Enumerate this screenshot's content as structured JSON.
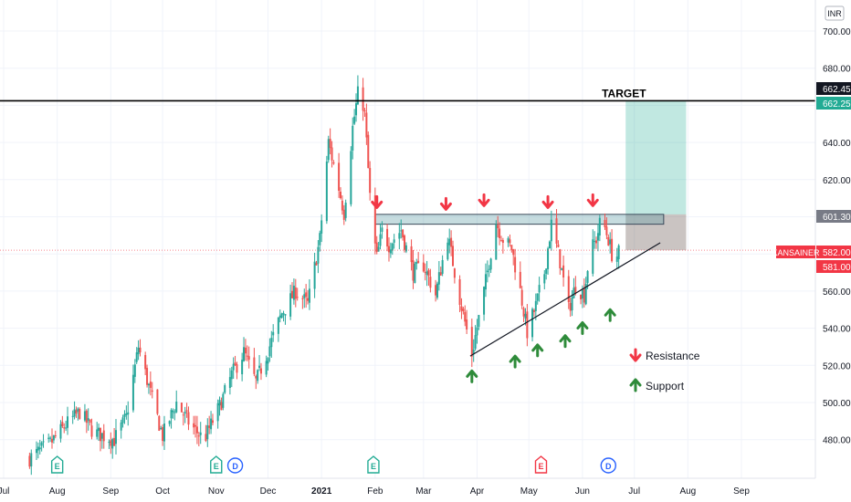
{
  "chart_data": {
    "type": "candlestick",
    "symbol": "KANSAINER",
    "currency": "INR",
    "y_range": [
      460,
      720
    ],
    "y_ticks": [
      480,
      500,
      520,
      540,
      560,
      580,
      600,
      620,
      640,
      660,
      680,
      700
    ],
    "y_tick_labels": [
      "480.00",
      "500.00",
      "520.00",
      "540.00",
      "560.00",
      "580.00",
      "600.00",
      "620.00",
      "640.00",
      "660.00",
      "680.00",
      "700.00"
    ],
    "x_ticks": [
      {
        "date": "2020-07-01",
        "label": "Jul",
        "bold": false
      },
      {
        "date": "2020-08-01",
        "label": "Aug",
        "bold": false
      },
      {
        "date": "2020-09-01",
        "label": "Sep",
        "bold": false
      },
      {
        "date": "2020-10-01",
        "label": "Oct",
        "bold": false
      },
      {
        "date": "2020-11-01",
        "label": "Nov",
        "bold": false
      },
      {
        "date": "2020-12-01",
        "label": "Dec",
        "bold": false
      },
      {
        "date": "2021-01-01",
        "label": "2021",
        "bold": true
      },
      {
        "date": "2021-02-01",
        "label": "Feb",
        "bold": false
      },
      {
        "date": "2021-03-01",
        "label": "Mar",
        "bold": false
      },
      {
        "date": "2021-04-01",
        "label": "Apr",
        "bold": false
      },
      {
        "date": "2021-05-01",
        "label": "May",
        "bold": false
      },
      {
        "date": "2021-06-01",
        "label": "Jun",
        "bold": false
      },
      {
        "date": "2021-07-01",
        "label": "Jul",
        "bold": false
      },
      {
        "date": "2021-08-01",
        "label": "Aug",
        "bold": false
      },
      {
        "date": "2021-09-01",
        "label": "Sep",
        "bold": false
      }
    ],
    "price_path": [
      {
        "date": "2020-07-16",
        "price": 470
      },
      {
        "date": "2020-07-28",
        "price": 478
      },
      {
        "date": "2020-08-06",
        "price": 488
      },
      {
        "date": "2020-08-14",
        "price": 495
      },
      {
        "date": "2020-08-22",
        "price": 484
      },
      {
        "date": "2020-09-03",
        "price": 480
      },
      {
        "date": "2020-09-10",
        "price": 492
      },
      {
        "date": "2020-09-17",
        "price": 530
      },
      {
        "date": "2020-09-24",
        "price": 505
      },
      {
        "date": "2020-10-01",
        "price": 482
      },
      {
        "date": "2020-10-09",
        "price": 500
      },
      {
        "date": "2020-10-17",
        "price": 488
      },
      {
        "date": "2020-10-25",
        "price": 480
      },
      {
        "date": "2020-11-03",
        "price": 498
      },
      {
        "date": "2020-11-10",
        "price": 515
      },
      {
        "date": "2020-11-17",
        "price": 527
      },
      {
        "date": "2020-11-24",
        "price": 511
      },
      {
        "date": "2020-12-01",
        "price": 528
      },
      {
        "date": "2020-12-09",
        "price": 548
      },
      {
        "date": "2020-12-17",
        "price": 560
      },
      {
        "date": "2020-12-24",
        "price": 553
      },
      {
        "date": "2020-12-31",
        "price": 588
      },
      {
        "date": "2021-01-05",
        "price": 640
      },
      {
        "date": "2021-01-10",
        "price": 620
      },
      {
        "date": "2021-01-14",
        "price": 602
      },
      {
        "date": "2021-01-19",
        "price": 648
      },
      {
        "date": "2021-01-23",
        "price": 672
      },
      {
        "date": "2021-01-26",
        "price": 655
      },
      {
        "date": "2021-01-30",
        "price": 596
      },
      {
        "date": "2021-02-02",
        "price": 578
      },
      {
        "date": "2021-02-05",
        "price": 592
      },
      {
        "date": "2021-02-09",
        "price": 585
      },
      {
        "date": "2021-02-16",
        "price": 593
      },
      {
        "date": "2021-02-23",
        "price": 570
      },
      {
        "date": "2021-03-01",
        "price": 574
      },
      {
        "date": "2021-03-08",
        "price": 558
      },
      {
        "date": "2021-03-15",
        "price": 590
      },
      {
        "date": "2021-03-22",
        "price": 556
      },
      {
        "date": "2021-03-29",
        "price": 526
      },
      {
        "date": "2021-04-05",
        "price": 560
      },
      {
        "date": "2021-04-12",
        "price": 597
      },
      {
        "date": "2021-04-16",
        "price": 588
      },
      {
        "date": "2021-04-21",
        "price": 583
      },
      {
        "date": "2021-04-26",
        "price": 560
      },
      {
        "date": "2021-04-30",
        "price": 538
      },
      {
        "date": "2021-05-05",
        "price": 552
      },
      {
        "date": "2021-05-10",
        "price": 570
      },
      {
        "date": "2021-05-14",
        "price": 596
      },
      {
        "date": "2021-05-19",
        "price": 576
      },
      {
        "date": "2021-05-24",
        "price": 550
      },
      {
        "date": "2021-05-28",
        "price": 563
      },
      {
        "date": "2021-06-02",
        "price": 558
      },
      {
        "date": "2021-06-05",
        "price": 580
      },
      {
        "date": "2021-06-09",
        "price": 588
      },
      {
        "date": "2021-06-12",
        "price": 600
      },
      {
        "date": "2021-06-16",
        "price": 588
      },
      {
        "date": "2021-06-19",
        "price": 576
      },
      {
        "date": "2021-06-23",
        "price": 582
      }
    ],
    "price_labels": [
      {
        "value": 662.45,
        "text": "662.45",
        "color": "#131722"
      },
      {
        "value": 662.25,
        "text": "662.25",
        "color": "#22ab94"
      },
      {
        "value": 601.3,
        "text": "601.30",
        "color": "#787b86"
      },
      {
        "value": 582.0,
        "text": "582.00",
        "color": "#f23645"
      },
      {
        "value": 581.0,
        "text": "581.00",
        "color": "#f23645"
      }
    ],
    "symbol_color": "#f23645",
    "current_price": 582.0,
    "target_line": {
      "value": 662.45,
      "label": "TARGET",
      "label_date": "2021-06-25"
    },
    "resistance_zone": {
      "from": "2021-02-01",
      "to": "2021-07-18",
      "low": 596,
      "high": 601.3
    },
    "support_trendline": {
      "from": {
        "date": "2021-03-28",
        "price": 525
      },
      "to": {
        "date": "2021-07-16",
        "price": 586
      }
    },
    "position": {
      "from": "2021-06-26",
      "to": "2021-07-31",
      "entry": 582,
      "target": 662.25,
      "stop": 601.3
    },
    "resistance_markers": [
      {
        "date": "2021-02-02",
        "price": 604
      },
      {
        "date": "2021-03-14",
        "price": 603
      },
      {
        "date": "2021-04-05",
        "price": 605
      },
      {
        "date": "2021-05-12",
        "price": 604
      },
      {
        "date": "2021-06-07",
        "price": 605
      }
    ],
    "support_markers": [
      {
        "date": "2021-03-29",
        "price": 518
      },
      {
        "date": "2021-04-23",
        "price": 526
      },
      {
        "date": "2021-05-06",
        "price": 532
      },
      {
        "date": "2021-05-22",
        "price": 537
      },
      {
        "date": "2021-06-01",
        "price": 544
      },
      {
        "date": "2021-06-17",
        "price": 551
      }
    ],
    "event_markers": [
      {
        "date": "2020-08-01",
        "kind": "E",
        "color": "#22ab94"
      },
      {
        "date": "2020-11-01",
        "kind": "E",
        "color": "#22ab94"
      },
      {
        "date": "2020-11-12",
        "kind": "D",
        "color": "#2962ff"
      },
      {
        "date": "2021-01-31",
        "kind": "E",
        "color": "#22ab94"
      },
      {
        "date": "2021-05-08",
        "kind": "E",
        "color": "#f23645"
      },
      {
        "date": "2021-06-16",
        "kind": "D",
        "color": "#2962ff"
      }
    ],
    "legend": [
      {
        "label": "Resistance",
        "color": "#f23645",
        "direction": "down"
      },
      {
        "label": "Support",
        "color": "#2e8b3a",
        "direction": "up"
      }
    ],
    "colors": {
      "up": "#26a69a",
      "down": "#ef5350",
      "grid": "#f0f3fa",
      "text": "#131722"
    },
    "grid": true
  }
}
